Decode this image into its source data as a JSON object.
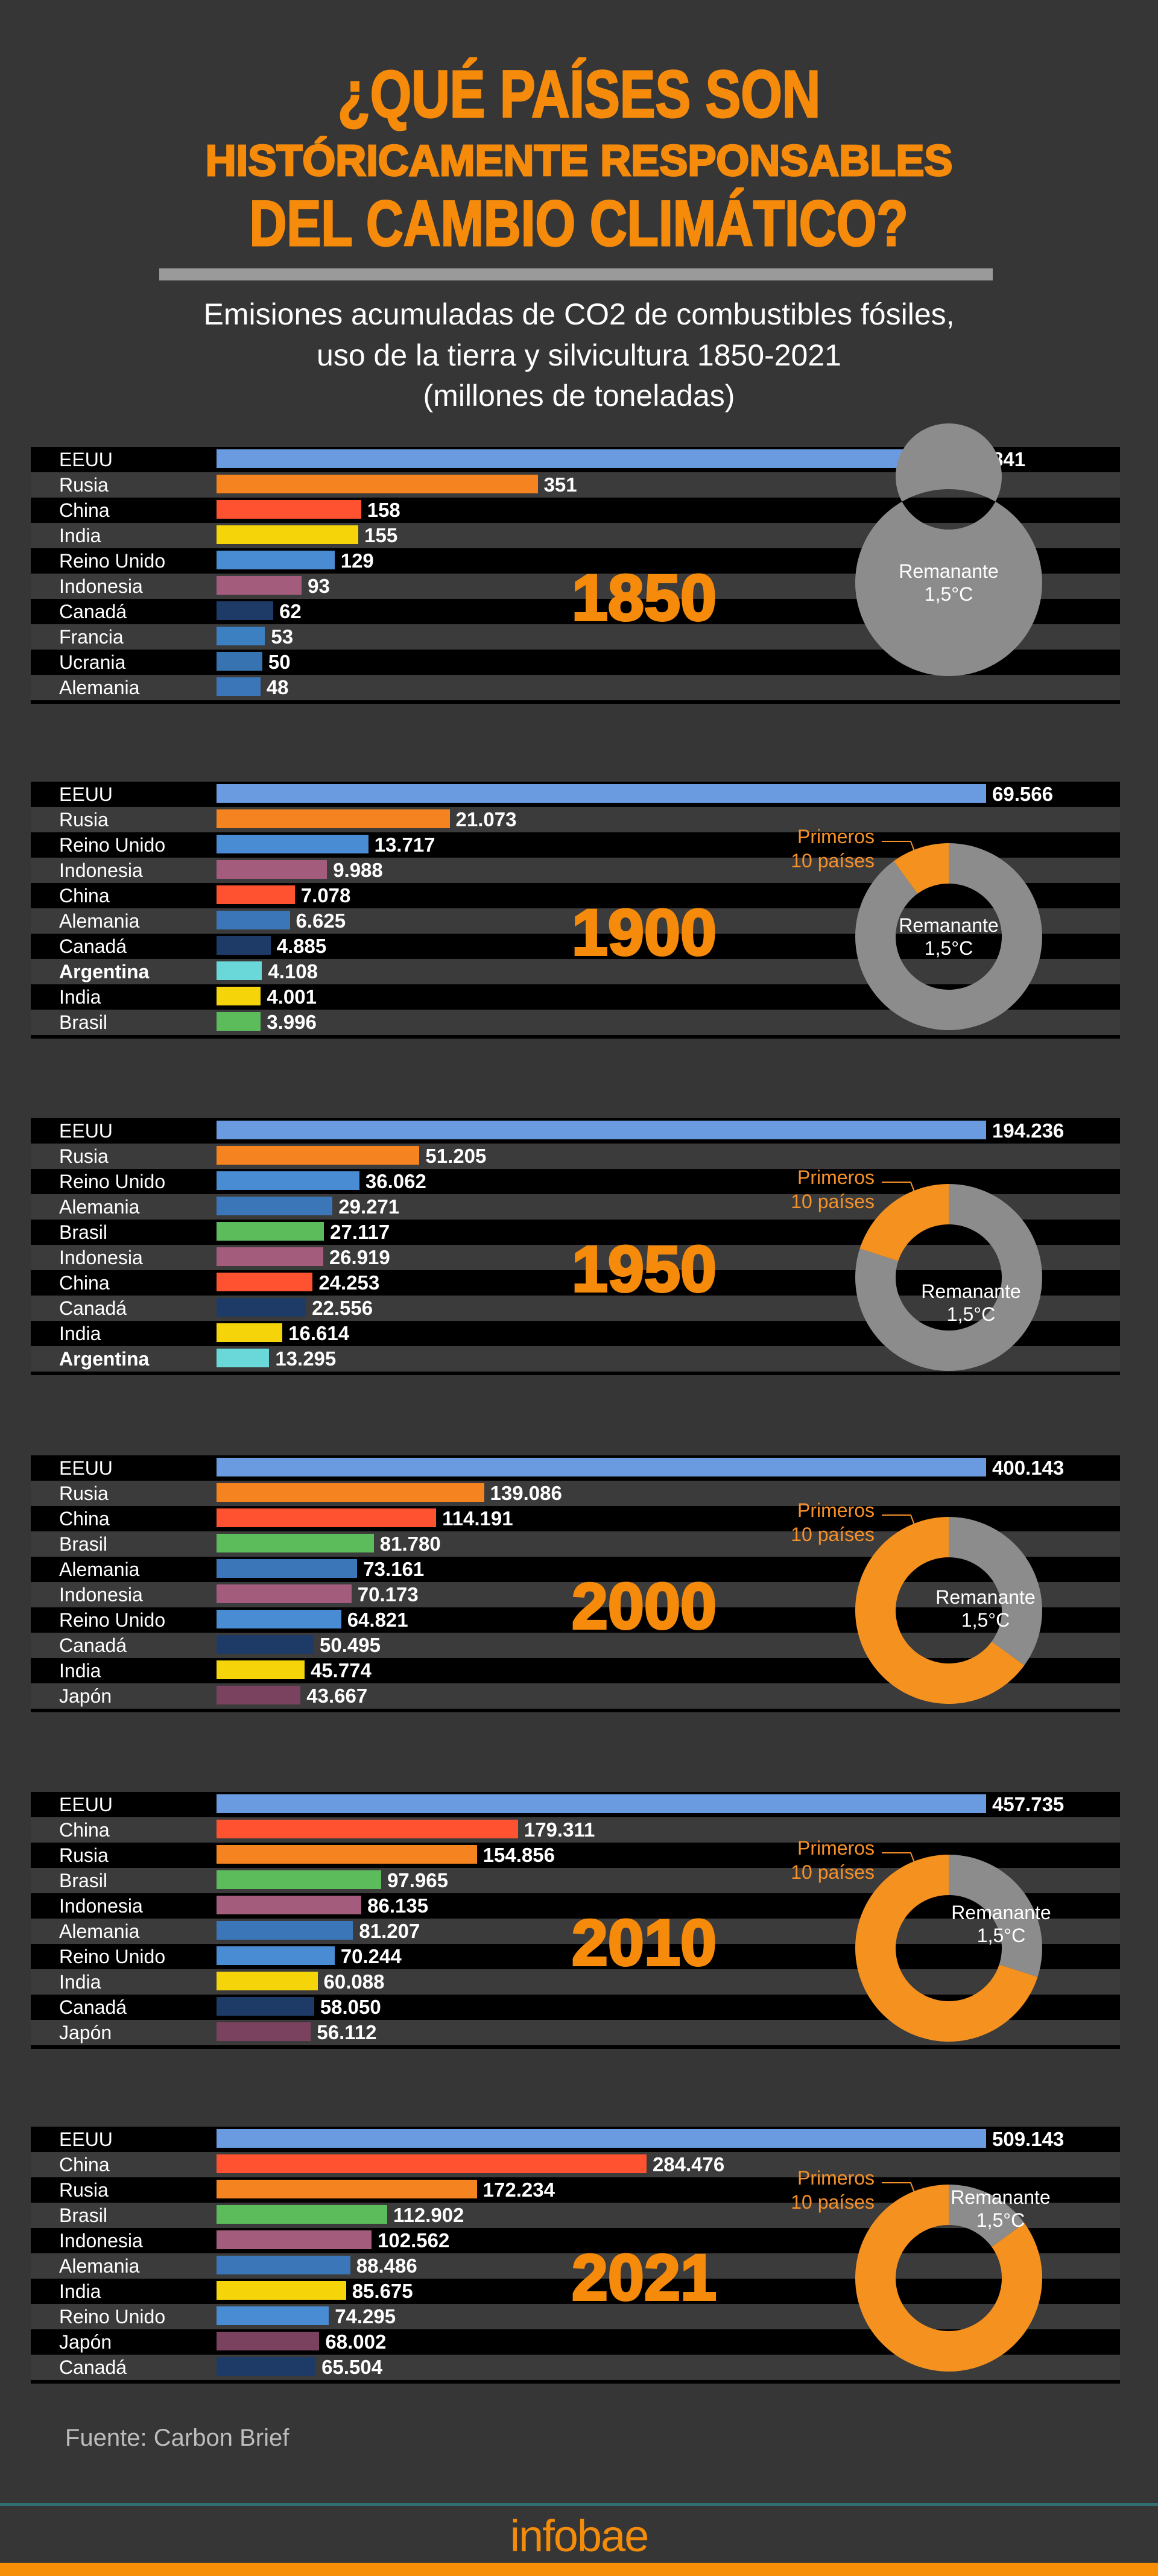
{
  "header": {
    "title_lines": [
      "¿QUÉ PAÍSES SON",
      "HISTÓRICAMENTE RESPONSABLES",
      "DEL CAMBIO CLIMÁTICO?"
    ],
    "subtitle_lines": [
      "Emisiones acumuladas de CO2 de combustibles fósiles,",
      "uso de la tierra y silvicultura 1850-2021",
      "(millones de toneladas)"
    ]
  },
  "colors": {
    "accent": "#f68b0b",
    "background": "#363636",
    "remaining": "#8c8c8c",
    "top10": "#f5911f",
    "countries": {
      "EEUU": "#6a9be0",
      "Rusia": "#f58420",
      "China": "#ff5230",
      "India": "#f6d40a",
      "Reino Unido": "#4a8cd4",
      "Indonesia": "#a45c7c",
      "Canadá": "#1e3b68",
      "Francia": "#3d80c2",
      "Ucrania": "#3673b0",
      "Alemania": "#3b77b8",
      "Argentina": "#6ad8d8",
      "Brasil": "#5cbc5c",
      "Japón": "#7b4260"
    }
  },
  "chart_data": [
    {
      "type": "bar",
      "title": "1850",
      "rows": [
        {
          "country": "EEUU",
          "value": 841,
          "label": "841"
        },
        {
          "country": "Rusia",
          "value": 351,
          "label": "351"
        },
        {
          "country": "China",
          "value": 158,
          "label": "158"
        },
        {
          "country": "India",
          "value": 155,
          "label": "155"
        },
        {
          "country": "Reino Unido",
          "value": 129,
          "label": "129"
        },
        {
          "country": "Indonesia",
          "value": 93,
          "label": "93"
        },
        {
          "country": "Canadá",
          "value": 62,
          "label": "62"
        },
        {
          "country": "Francia",
          "value": 53,
          "label": "53"
        },
        {
          "country": "Ucrania",
          "value": 50,
          "label": "50"
        },
        {
          "country": "Alemania",
          "value": 48,
          "label": "48"
        }
      ],
      "donut": {
        "type": "pie",
        "top10_share": 0,
        "remaining_label": "Remanante",
        "remaining_sub": "1,5°C"
      }
    },
    {
      "type": "bar",
      "title": "1900",
      "rows": [
        {
          "country": "EEUU",
          "value": 69566,
          "label": "69.566"
        },
        {
          "country": "Rusia",
          "value": 21073,
          "label": "21.073"
        },
        {
          "country": "Reino Unido",
          "value": 13717,
          "label": "13.717"
        },
        {
          "country": "Indonesia",
          "value": 9988,
          "label": "9.988"
        },
        {
          "country": "China",
          "value": 7078,
          "label": "7.078"
        },
        {
          "country": "Alemania",
          "value": 6625,
          "label": "6.625"
        },
        {
          "country": "Canadá",
          "value": 4885,
          "label": "4.885"
        },
        {
          "country": "Argentina",
          "value": 4108,
          "label": "4.108",
          "highlight": true
        },
        {
          "country": "India",
          "value": 4001,
          "label": "4.001"
        },
        {
          "country": "Brasil",
          "value": 3996,
          "label": "3.996"
        }
      ],
      "donut": {
        "type": "pie",
        "top10_share": 0.1,
        "top10_label": "Primeros",
        "top10_sub": "10 países",
        "remaining_label": "Remanante",
        "remaining_sub": "1,5°C"
      }
    },
    {
      "type": "bar",
      "title": "1950",
      "rows": [
        {
          "country": "EEUU",
          "value": 194236,
          "label": "194.236"
        },
        {
          "country": "Rusia",
          "value": 51205,
          "label": "51.205"
        },
        {
          "country": "Reino Unido",
          "value": 36062,
          "label": "36.062"
        },
        {
          "country": "Alemania",
          "value": 29271,
          "label": "29.271"
        },
        {
          "country": "Brasil",
          "value": 27117,
          "label": "27.117"
        },
        {
          "country": "Indonesia",
          "value": 26919,
          "label": "26.919"
        },
        {
          "country": "China",
          "value": 24253,
          "label": "24.253"
        },
        {
          "country": "Canadá",
          "value": 22556,
          "label": "22.556"
        },
        {
          "country": "India",
          "value": 16614,
          "label": "16.614"
        },
        {
          "country": "Argentina",
          "value": 13295,
          "label": "13.295",
          "highlight": true
        }
      ],
      "donut": {
        "type": "pie",
        "top10_share": 0.2,
        "top10_label": "Primeros",
        "top10_sub": "10 países",
        "remaining_label": "Remanante",
        "remaining_sub": "1,5°C"
      }
    },
    {
      "type": "bar",
      "title": "2000",
      "rows": [
        {
          "country": "EEUU",
          "value": 400143,
          "label": "400.143"
        },
        {
          "country": "Rusia",
          "value": 139086,
          "label": "139.086"
        },
        {
          "country": "China",
          "value": 114191,
          "label": "114.191"
        },
        {
          "country": "Brasil",
          "value": 81780,
          "label": "81.780"
        },
        {
          "country": "Alemania",
          "value": 73161,
          "label": "73.161"
        },
        {
          "country": "Indonesia",
          "value": 70173,
          "label": "70.173"
        },
        {
          "country": "Reino Unido",
          "value": 64821,
          "label": "64.821"
        },
        {
          "country": "Canadá",
          "value": 50495,
          "label": "50.495"
        },
        {
          "country": "India",
          "value": 45774,
          "label": "45.774"
        },
        {
          "country": "Japón",
          "value": 43667,
          "label": "43.667"
        }
      ],
      "donut": {
        "type": "pie",
        "top10_share": 0.65,
        "top10_label": "Primeros",
        "top10_sub": "10 países",
        "remaining_label": "Remanante",
        "remaining_sub": "1,5°C"
      }
    },
    {
      "type": "bar",
      "title": "2010",
      "rows": [
        {
          "country": "EEUU",
          "value": 457735,
          "label": "457.735"
        },
        {
          "country": "China",
          "value": 179311,
          "label": "179.311"
        },
        {
          "country": "Rusia",
          "value": 154856,
          "label": "154.856"
        },
        {
          "country": "Brasil",
          "value": 97965,
          "label": "97.965"
        },
        {
          "country": "Indonesia",
          "value": 86135,
          "label": "86.135"
        },
        {
          "country": "Alemania",
          "value": 81207,
          "label": "81.207"
        },
        {
          "country": "Reino Unido",
          "value": 70244,
          "label": "70.244"
        },
        {
          "country": "India",
          "value": 60088,
          "label": "60.088"
        },
        {
          "country": "Canadá",
          "value": 58050,
          "label": "58.050"
        },
        {
          "country": "Japón",
          "value": 56112,
          "label": "56.112"
        }
      ],
      "donut": {
        "type": "pie",
        "top10_share": 0.7,
        "top10_label": "Primeros",
        "top10_sub": "10 países",
        "remaining_label": "Remanante",
        "remaining_sub": "1,5°C"
      }
    },
    {
      "type": "bar",
      "title": "2021",
      "rows": [
        {
          "country": "EEUU",
          "value": 509143,
          "label": "509.143"
        },
        {
          "country": "China",
          "value": 284476,
          "label": "284.476"
        },
        {
          "country": "Rusia",
          "value": 172234,
          "label": "172.234"
        },
        {
          "country": "Brasil",
          "value": 112902,
          "label": "112.902"
        },
        {
          "country": "Indonesia",
          "value": 102562,
          "label": "102.562"
        },
        {
          "country": "Alemania",
          "value": 88486,
          "label": "88.486"
        },
        {
          "country": "India",
          "value": 85675,
          "label": "85.675"
        },
        {
          "country": "Reino Unido",
          "value": 74295,
          "label": "74.295"
        },
        {
          "country": "Japón",
          "value": 68002,
          "label": "68.002"
        },
        {
          "country": "Canadá",
          "value": 65504,
          "label": "65.504"
        }
      ],
      "donut": {
        "type": "pie",
        "top10_share": 0.85,
        "top10_label": "Primeros",
        "top10_sub": "10 países",
        "remaining_label": "Remanante",
        "remaining_sub": "1,5°C"
      }
    }
  ],
  "footer": {
    "source": "Fuente: Carbon Brief",
    "brand": "infobae"
  }
}
